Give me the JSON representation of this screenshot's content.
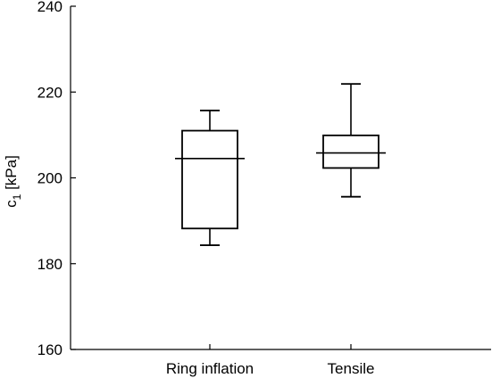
{
  "chart_data": {
    "type": "boxplot",
    "title": "",
    "xlabel": "",
    "ylabel": {
      "main": "c",
      "subscript": "1",
      "unit": " [kPa]"
    },
    "ylim": [
      160,
      240
    ],
    "yticks": [
      160,
      180,
      200,
      220,
      240
    ],
    "ytick_labels": [
      "160",
      "180",
      "200",
      "220",
      "240"
    ],
    "categories": [
      "Ring inflation",
      "Tensile"
    ],
    "boxes": [
      {
        "category": "Ring inflation",
        "min": 184.3,
        "q1": 188.2,
        "median": 204.5,
        "q3": 211.0,
        "max": 215.7
      },
      {
        "category": "Tensile",
        "min": 195.6,
        "q1": 202.3,
        "median": 205.8,
        "q3": 209.9,
        "max": 221.9
      }
    ],
    "grid": false,
    "legend": "none"
  }
}
